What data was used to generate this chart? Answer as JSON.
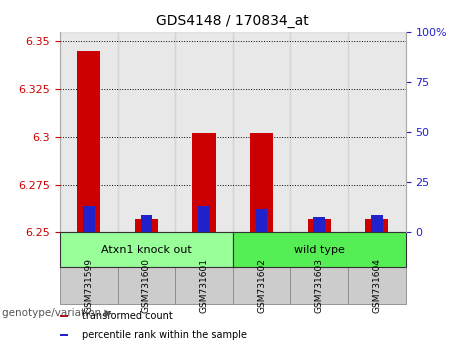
{
  "title": "GDS4148 / 170834_at",
  "samples": [
    "GSM731599",
    "GSM731600",
    "GSM731601",
    "GSM731602",
    "GSM731603",
    "GSM731604"
  ],
  "red_values": [
    6.345,
    6.257,
    6.302,
    6.302,
    6.257,
    6.257
  ],
  "blue_values": [
    6.264,
    6.259,
    6.264,
    6.262,
    6.258,
    6.259
  ],
  "baseline": 6.25,
  "ylim": [
    6.25,
    6.355
  ],
  "yticks": [
    6.25,
    6.275,
    6.3,
    6.325,
    6.35
  ],
  "ytick_labels": [
    "6.25",
    "6.275",
    "6.3",
    "6.325",
    "6.35"
  ],
  "right_ytick_pct": [
    0,
    25,
    50,
    75,
    100
  ],
  "right_ytick_labels": [
    "0",
    "25",
    "50",
    "75",
    "100%"
  ],
  "bar_width": 0.4,
  "blue_bar_width": 0.2,
  "red_color": "#cc0000",
  "blue_color": "#2222cc",
  "col_bg_color": "#cccccc",
  "group1_label": "Atxn1 knock out",
  "group2_label": "wild type",
  "group1_color": "#99ff99",
  "group2_color": "#55ee55",
  "ytick_color": "#cc0000",
  "right_ytick_color": "#2222cc",
  "grid_color": "#000000",
  "legend_red_label": "transformed count",
  "legend_blue_label": "percentile rank within the sample",
  "genotype_label": "genotype/variation",
  "group1_indices": [
    0,
    1,
    2
  ],
  "group2_indices": [
    3,
    4,
    5
  ],
  "background_color": "#ffffff"
}
